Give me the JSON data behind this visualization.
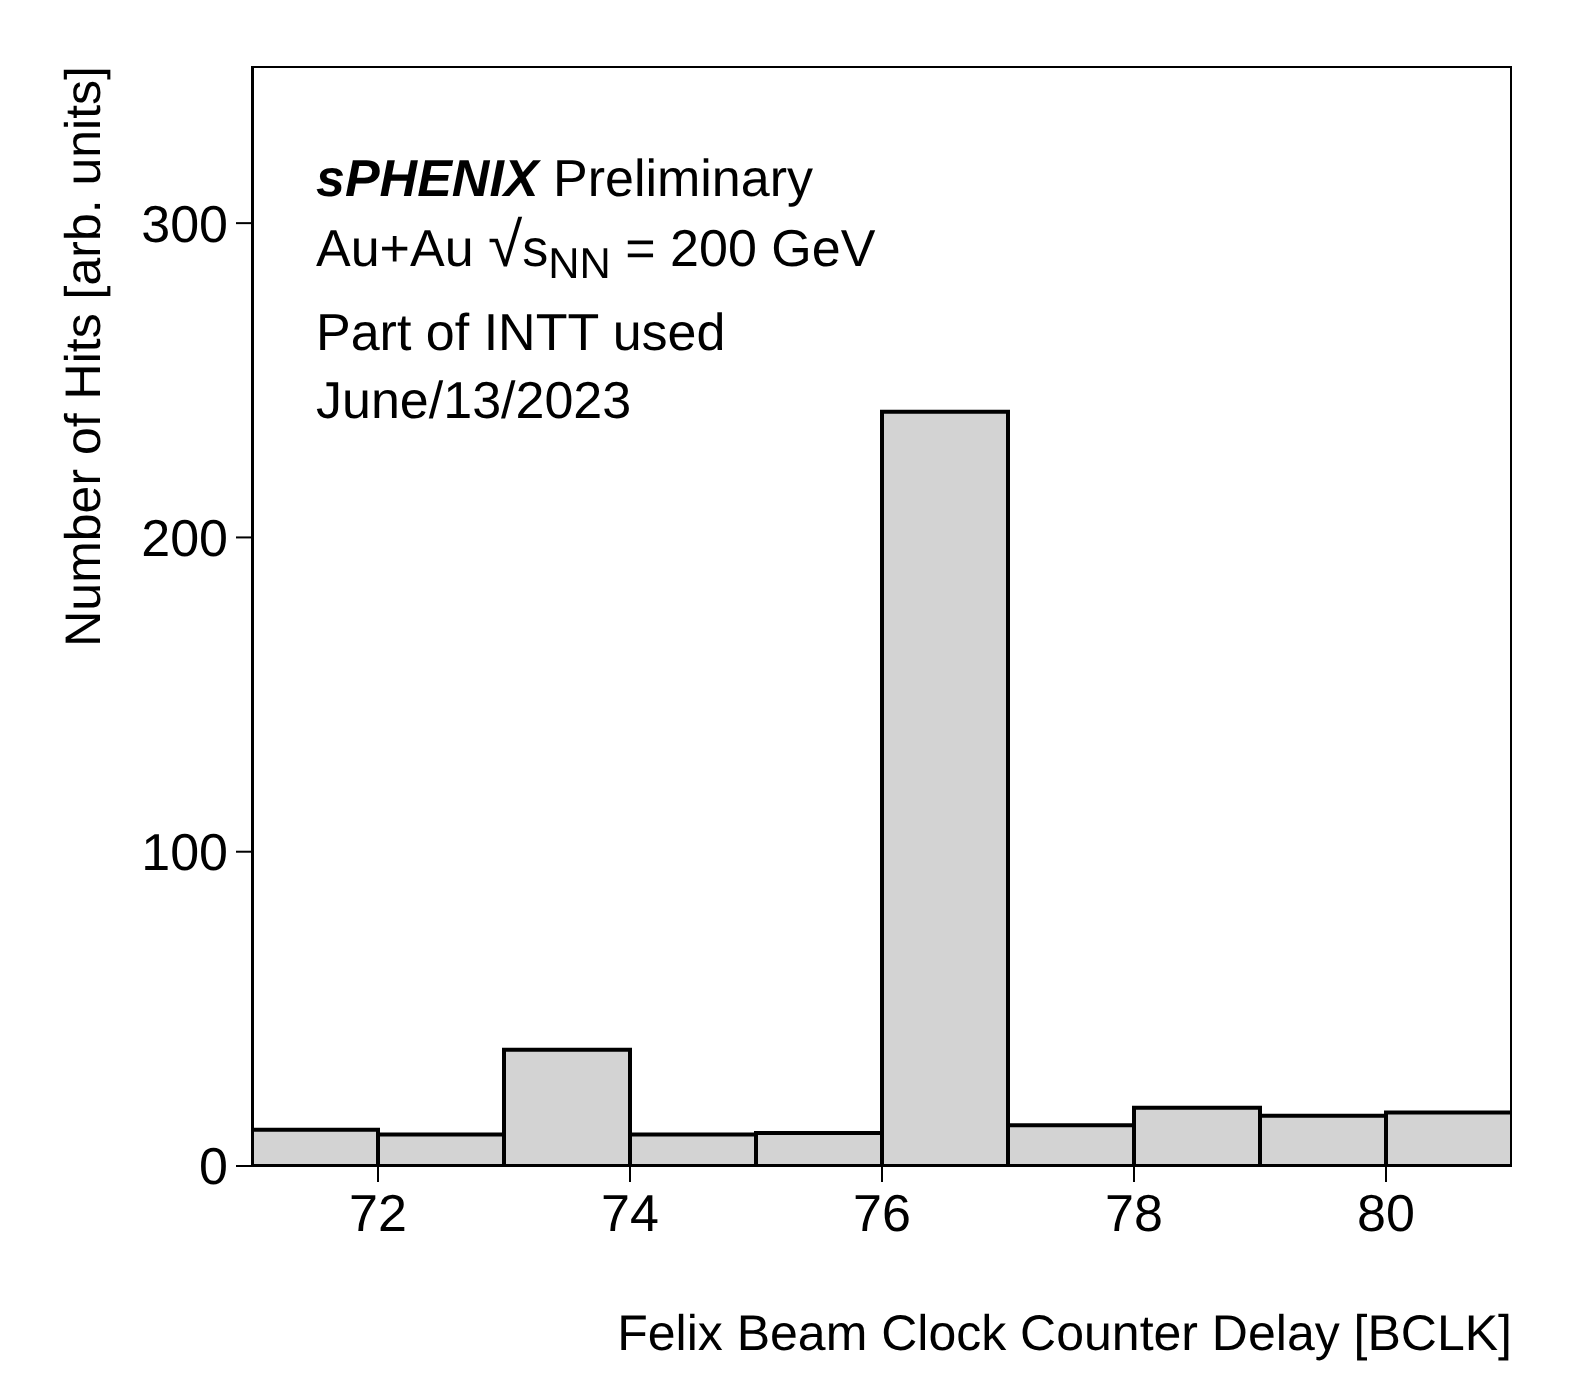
{
  "chart_data": {
    "type": "histogram",
    "xlabel": "Felix Beam Clock Counter Delay [BCLK]",
    "ylabel": "Number of Hits [arb. units]",
    "annotations": [
      "sPHENIX Preliminary",
      "Au+Au √s$_{NN}$ = 200 GeV",
      "Part of INTT used",
      "June/13/2023"
    ],
    "bins": [
      71,
      72,
      73,
      74,
      75,
      76,
      77,
      78,
      79,
      80,
      81
    ],
    "values": [
      11.5,
      10,
      37,
      10,
      10.5,
      240,
      13,
      18.5,
      16,
      17
    ],
    "color": "#d3d3d3",
    "xlim": [
      71,
      81
    ],
    "xticks": [
      72,
      74,
      76,
      78,
      80
    ],
    "ylim": [
      0,
      350
    ],
    "yticks": [
      0,
      100,
      200,
      300
    ],
    "grid": false,
    "legend": false
  }
}
